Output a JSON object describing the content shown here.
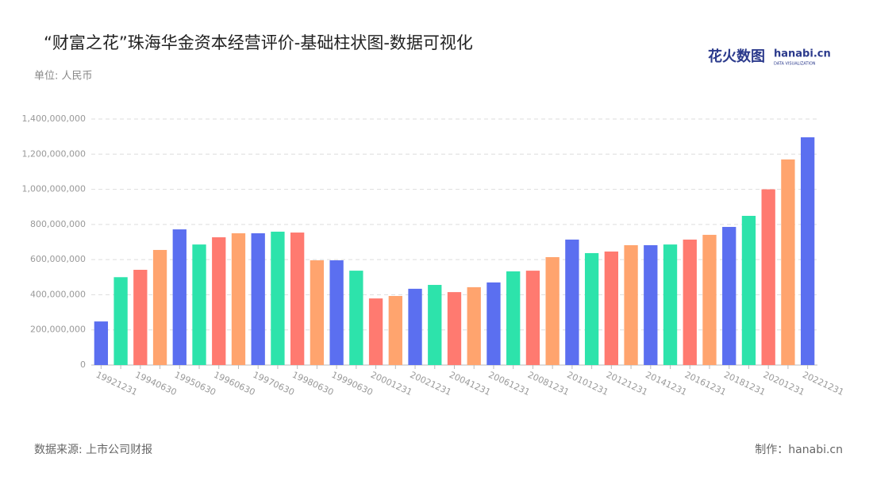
{
  "chart_data": {
    "type": "bar",
    "title": "“财富之花”珠海华金资本经营评价-基础柱状图-数据可视化",
    "subtitle": "单位: 人民币",
    "source": "数据来源: 上市公司财报",
    "credit": "制作：hanabi.cn",
    "logo": {
      "cn": "花火数图",
      "en": "hanabi.cn",
      "tagline": "DATA VISUALIZATION"
    },
    "categories": [
      "19921231",
      null,
      "19940630",
      null,
      "19950630",
      null,
      "19960630",
      null,
      "19970630",
      null,
      "19980630",
      null,
      "19990630",
      null,
      "20001231",
      null,
      "20021231",
      null,
      "20041231",
      null,
      "20061231",
      null,
      "20081231",
      null,
      "20101231",
      null,
      "20121231",
      null,
      "20141231",
      null,
      "20161231",
      null,
      "20181231",
      null,
      "20201231",
      null,
      "20221231"
    ],
    "values": [
      248000000,
      500000000,
      542000000,
      655000000,
      772000000,
      686000000,
      727000000,
      750000000,
      750000000,
      759000000,
      754000000,
      596000000,
      596000000,
      537000000,
      379000000,
      393000000,
      434000000,
      456000000,
      415000000,
      443000000,
      470000000,
      533000000,
      537000000,
      614000000,
      714000000,
      637000000,
      646000000,
      682000000,
      682000000,
      686000000,
      714000000,
      741000000,
      786000000,
      849000000,
      1000000000,
      1170000000,
      1296000000
    ],
    "colors": [
      "#5b6ff0",
      "#2de3ab",
      "#ff7a70",
      "#ffa46e"
    ],
    "ylim": [
      0,
      1400000000
    ],
    "yticks": [
      0,
      {
        "value": 200000000,
        "label": "200,000,000"
      },
      {
        "value": 400000000,
        "label": "400,000,000"
      },
      {
        "value": 600000000,
        "label": "600,000,000"
      },
      {
        "value": 800000000,
        "label": "800,000,000"
      },
      {
        "value": 1000000000,
        "label": "1,000,000,000"
      },
      {
        "value": 1200000000,
        "label": "1,200,000,000"
      },
      {
        "value": 1400000000,
        "label": "1,400,000,000"
      }
    ],
    "grid": true
  }
}
